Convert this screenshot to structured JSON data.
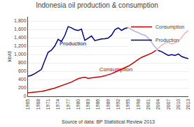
{
  "chart_data": {
    "type": "line",
    "title": "Indonesia oil production & consumption",
    "y_label": "kb/d",
    "x": [
      1965,
      1966,
      1967,
      1968,
      1969,
      1970,
      1971,
      1972,
      1973,
      1974,
      1975,
      1976,
      1977,
      1978,
      1979,
      1980,
      1981,
      1982,
      1983,
      1984,
      1985,
      1986,
      1987,
      1988,
      1989,
      1990,
      1991,
      1992,
      1993,
      1994,
      1995,
      1996,
      1997,
      1998,
      1999,
      2000,
      2001,
      2002,
      2003,
      2004,
      2005,
      2006,
      2007,
      2008,
      2009,
      2010,
      2011,
      2012,
      2013
    ],
    "series": [
      {
        "name": "Production",
        "color": "#00008B",
        "values": [
          480,
          500,
          540,
          590,
          640,
          850,
          1050,
          1100,
          1200,
          1360,
          1310,
          1450,
          1665,
          1635,
          1590,
          1570,
          1605,
          1335,
          1390,
          1440,
          1330,
          1350,
          1370,
          1375,
          1390,
          1460,
          1590,
          1635,
          1575,
          1620,
          1640,
          1595,
          1550,
          1520,
          1480,
          1460,
          1390,
          1290,
          1180,
          1095,
          1065,
          1020,
          975,
          995,
          975,
          1010,
          950,
          920,
          900
        ]
      },
      {
        "name": "Consumption",
        "color": "#CC0000",
        "values": [
          85,
          90,
          95,
          100,
          115,
          135,
          150,
          175,
          195,
          225,
          245,
          280,
          315,
          340,
          380,
          420,
          440,
          455,
          430,
          440,
          445,
          455,
          470,
          490,
          510,
          540,
          575,
          610,
          645,
          680,
          720,
          770,
          830,
          880,
          930,
          960,
          1000,
          1030,
          1080,
          1155,
          1220,
          1270,
          1290,
          1250,
          1280,
          1310,
          1410,
          1510,
          1570
        ]
      }
    ],
    "xlim": [
      1965,
      2013
    ],
    "xticks": [
      1965,
      1968,
      1971,
      1974,
      1977,
      1980,
      1983,
      1986,
      1989,
      1992,
      1995,
      1998,
      2001,
      2004,
      2007,
      2010,
      2013
    ],
    "ylim": [
      0,
      1900
    ],
    "yticks": [
      0,
      200,
      400,
      600,
      800,
      {
        "value": 1000,
        "label": "1,000"
      },
      {
        "value": 1200,
        "label": "1,200"
      },
      {
        "value": 1400,
        "label": "1,400"
      },
      {
        "value": 1600,
        "label": "1,600"
      },
      {
        "value": 1800,
        "label": "1,800"
      }
    ],
    "grid": "y",
    "legend": "upper right",
    "annotations": [
      {
        "text": "Production",
        "x": 1974,
        "y": 1150,
        "color": "#00008B"
      },
      {
        "text": "Consumption",
        "x": 1986,
        "y": 530,
        "color": "#CC0000"
      },
      {
        "text": "Source of data: BP Statistical Review 2013"
      }
    ]
  }
}
